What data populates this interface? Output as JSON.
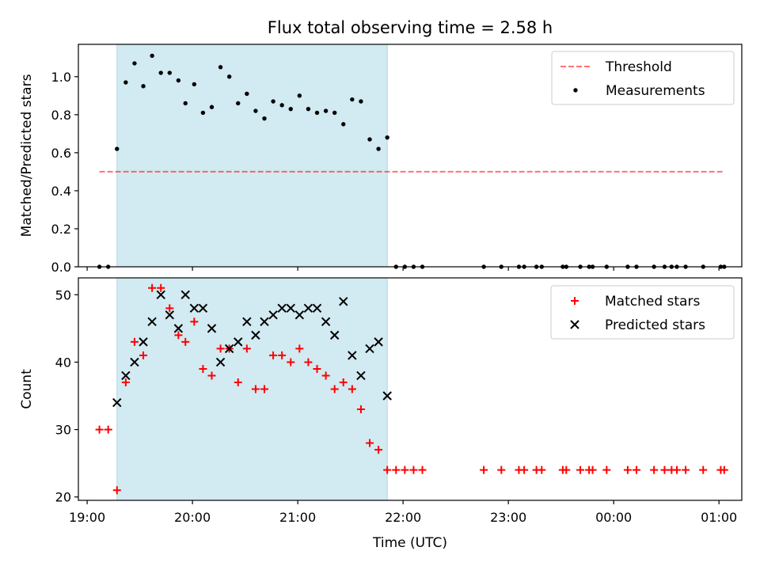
{
  "chart_data": [
    {
      "type": "scatter",
      "title": "Flux total observing time = 2.58 h",
      "xlabel": "",
      "ylabel": "Matched/Predicted stars",
      "xlim": [
        "18:55",
        "01:13"
      ],
      "ylim": [
        0,
        1.17
      ],
      "yticks": [
        0.0,
        0.2,
        0.4,
        0.6,
        0.8,
        1.0
      ],
      "ytick_labels": [
        "0.0",
        "0.2",
        "0.4",
        "0.6",
        "0.8",
        "1.0"
      ],
      "xticks": [
        "19:00",
        "20:00",
        "21:00",
        "22:00",
        "23:00",
        "00:00",
        "01:00"
      ],
      "show_xtick_labels": false,
      "shaded_interval": [
        "19:17",
        "21:51"
      ],
      "shade_color": "#add8e6",
      "legend_position": "top-right",
      "threshold": {
        "name": "Threshold",
        "value": 0.5,
        "x_range": [
          "19:07",
          "01:03"
        ],
        "color": "#ff0000"
      },
      "series": [
        {
          "name": "Measurements",
          "marker": "dot",
          "color": "#000000",
          "points": [
            [
              "19:07",
              0.0
            ],
            [
              "19:12",
              0.0
            ],
            [
              "19:17",
              0.62
            ],
            [
              "19:22",
              0.97
            ],
            [
              "19:27",
              1.07
            ],
            [
              "19:32",
              0.95
            ],
            [
              "19:37",
              1.11
            ],
            [
              "19:42",
              1.02
            ],
            [
              "19:47",
              1.02
            ],
            [
              "19:52",
              0.98
            ],
            [
              "19:56",
              0.86
            ],
            [
              "20:01",
              0.96
            ],
            [
              "20:06",
              0.81
            ],
            [
              "20:11",
              0.84
            ],
            [
              "20:16",
              1.05
            ],
            [
              "20:21",
              1.0
            ],
            [
              "20:26",
              0.86
            ],
            [
              "20:31",
              0.91
            ],
            [
              "20:36",
              0.82
            ],
            [
              "20:41",
              0.78
            ],
            [
              "20:46",
              0.87
            ],
            [
              "20:51",
              0.85
            ],
            [
              "20:56",
              0.83
            ],
            [
              "21:01",
              0.9
            ],
            [
              "21:06",
              0.83
            ],
            [
              "21:11",
              0.81
            ],
            [
              "21:16",
              0.82
            ],
            [
              "21:21",
              0.81
            ],
            [
              "21:26",
              0.75
            ],
            [
              "21:31",
              0.88
            ],
            [
              "21:36",
              0.87
            ],
            [
              "21:41",
              0.67
            ],
            [
              "21:46",
              0.62
            ],
            [
              "21:51",
              0.68
            ],
            [
              "21:56",
              0.0
            ],
            [
              "22:01",
              0.0
            ],
            [
              "22:06",
              0.0
            ],
            [
              "22:11",
              0.0
            ],
            [
              "22:46",
              0.0
            ],
            [
              "22:56",
              0.0
            ],
            [
              "23:06",
              0.0
            ],
            [
              "23:09",
              0.0
            ],
            [
              "23:16",
              0.0
            ],
            [
              "23:19",
              0.0
            ],
            [
              "23:31",
              0.0
            ],
            [
              "23:33",
              0.0
            ],
            [
              "23:41",
              0.0
            ],
            [
              "23:46",
              0.0
            ],
            [
              "23:48",
              0.0
            ],
            [
              "23:56",
              0.0
            ],
            [
              "00:08",
              0.0
            ],
            [
              "00:13",
              0.0
            ],
            [
              "00:23",
              0.0
            ],
            [
              "00:29",
              0.0
            ],
            [
              "00:33",
              0.0
            ],
            [
              "00:36",
              0.0
            ],
            [
              "00:41",
              0.0
            ],
            [
              "00:51",
              0.0
            ],
            [
              "01:01",
              0.0
            ],
            [
              "01:03",
              0.0
            ]
          ]
        }
      ]
    },
    {
      "type": "scatter",
      "title": "",
      "xlabel": "Time (UTC)",
      "ylabel": "Count",
      "xlim": [
        "18:55",
        "01:13"
      ],
      "ylim": [
        19.5,
        52.5
      ],
      "yticks": [
        20,
        30,
        40,
        50
      ],
      "ytick_labels": [
        "20",
        "30",
        "40",
        "50"
      ],
      "xticks": [
        "19:00",
        "20:00",
        "21:00",
        "22:00",
        "23:00",
        "00:00",
        "01:00"
      ],
      "show_xtick_labels": true,
      "shaded_interval": [
        "19:17",
        "21:51"
      ],
      "shade_color": "#add8e6",
      "legend_position": "top-right",
      "series": [
        {
          "name": "Matched stars",
          "marker": "plus",
          "color": "#ff0000",
          "points": [
            [
              "19:07",
              30
            ],
            [
              "19:12",
              30
            ],
            [
              "19:17",
              21
            ],
            [
              "19:22",
              37
            ],
            [
              "19:27",
              43
            ],
            [
              "19:32",
              41
            ],
            [
              "19:37",
              51
            ],
            [
              "19:42",
              51
            ],
            [
              "19:47",
              48
            ],
            [
              "19:52",
              44
            ],
            [
              "19:56",
              43
            ],
            [
              "20:01",
              46
            ],
            [
              "20:06",
              39
            ],
            [
              "20:11",
              38
            ],
            [
              "20:16",
              42
            ],
            [
              "20:21",
              42
            ],
            [
              "20:26",
              37
            ],
            [
              "20:31",
              42
            ],
            [
              "20:36",
              36
            ],
            [
              "20:41",
              36
            ],
            [
              "20:46",
              41
            ],
            [
              "20:51",
              41
            ],
            [
              "20:56",
              40
            ],
            [
              "21:01",
              42
            ],
            [
              "21:06",
              40
            ],
            [
              "21:11",
              39
            ],
            [
              "21:16",
              38
            ],
            [
              "21:21",
              36
            ],
            [
              "21:26",
              37
            ],
            [
              "21:31",
              36
            ],
            [
              "21:36",
              33
            ],
            [
              "21:41",
              28
            ],
            [
              "21:46",
              27
            ],
            [
              "21:51",
              24
            ],
            [
              "21:56",
              24
            ],
            [
              "22:01",
              24
            ],
            [
              "22:06",
              24
            ],
            [
              "22:11",
              24
            ],
            [
              "22:46",
              24
            ],
            [
              "22:56",
              24
            ],
            [
              "23:06",
              24
            ],
            [
              "23:09",
              24
            ],
            [
              "23:16",
              24
            ],
            [
              "23:19",
              24
            ],
            [
              "23:31",
              24
            ],
            [
              "23:33",
              24
            ],
            [
              "23:41",
              24
            ],
            [
              "23:46",
              24
            ],
            [
              "23:48",
              24
            ],
            [
              "23:56",
              24
            ],
            [
              "00:08",
              24
            ],
            [
              "00:13",
              24
            ],
            [
              "00:23",
              24
            ],
            [
              "00:29",
              24
            ],
            [
              "00:33",
              24
            ],
            [
              "00:36",
              24
            ],
            [
              "00:41",
              24
            ],
            [
              "00:51",
              24
            ],
            [
              "01:01",
              24
            ],
            [
              "01:03",
              24
            ]
          ]
        },
        {
          "name": "Predicted stars",
          "marker": "x",
          "color": "#000000",
          "points": [
            [
              "19:17",
              34
            ],
            [
              "19:22",
              38
            ],
            [
              "19:27",
              40
            ],
            [
              "19:32",
              43
            ],
            [
              "19:37",
              46
            ],
            [
              "19:42",
              50
            ],
            [
              "19:47",
              47
            ],
            [
              "19:52",
              45
            ],
            [
              "19:56",
              50
            ],
            [
              "20:01",
              48
            ],
            [
              "20:06",
              48
            ],
            [
              "20:11",
              45
            ],
            [
              "20:16",
              40
            ],
            [
              "20:21",
              42
            ],
            [
              "20:26",
              43
            ],
            [
              "20:31",
              46
            ],
            [
              "20:36",
              44
            ],
            [
              "20:41",
              46
            ],
            [
              "20:46",
              47
            ],
            [
              "20:51",
              48
            ],
            [
              "20:56",
              48
            ],
            [
              "21:01",
              47
            ],
            [
              "21:06",
              48
            ],
            [
              "21:11",
              48
            ],
            [
              "21:16",
              46
            ],
            [
              "21:21",
              44
            ],
            [
              "21:26",
              49
            ],
            [
              "21:31",
              41
            ],
            [
              "21:36",
              38
            ],
            [
              "21:41",
              42
            ],
            [
              "21:46",
              43
            ],
            [
              "21:51",
              35
            ]
          ]
        }
      ]
    }
  ]
}
